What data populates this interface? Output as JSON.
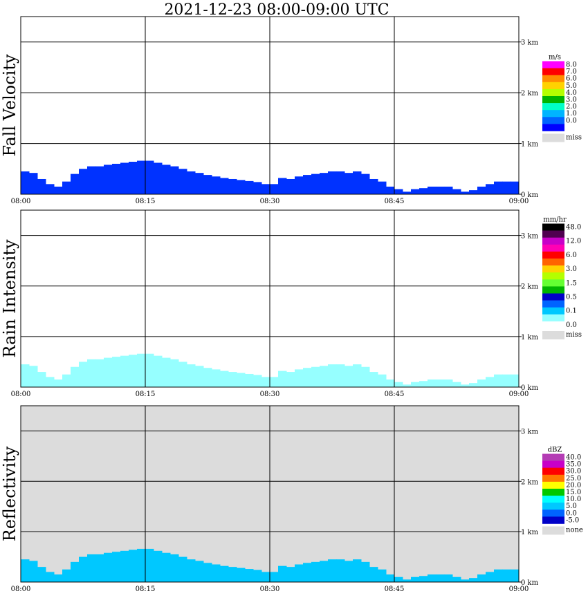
{
  "title": "2021-12-23   08:00-09:00 UTC",
  "chart_data": [
    {
      "type": "heatmap",
      "panel_label": "Fall Velocity",
      "x_ticks": [
        "08:00",
        "08:15",
        "08:30",
        "08:45",
        "09:00"
      ],
      "x_range_minutes": [
        0,
        60
      ],
      "y_ticks": [
        "0 km",
        "1 km",
        "2 km",
        "3 km"
      ],
      "y_range_km": [
        0,
        3.5
      ],
      "grid": true,
      "background": "#ffffff",
      "colorbar": {
        "unit": "m/s",
        "entries": [
          {
            "label": "8.0",
            "color": "#ff00ff"
          },
          {
            "label": "7.0",
            "color": "#ff0000"
          },
          {
            "label": "6.0",
            "color": "#ff8c00"
          },
          {
            "label": "5.0",
            "color": "#ffd200"
          },
          {
            "label": "4.0",
            "color": "#b4ff00"
          },
          {
            "label": "3.0",
            "color": "#00b400"
          },
          {
            "label": "2.0",
            "color": "#00ffc8"
          },
          {
            "label": "1.0",
            "color": "#00b4ff"
          },
          {
            "label": "0.0",
            "color": "#0064ff"
          },
          {
            "label": "",
            "color": "#0000ff"
          }
        ],
        "miss_label": "miss",
        "miss_color": "#dcdcdc"
      },
      "echo_top_km": [
        0.45,
        0.42,
        0.3,
        0.2,
        0.15,
        0.25,
        0.4,
        0.5,
        0.55,
        0.55,
        0.58,
        0.6,
        0.62,
        0.64,
        0.66,
        0.66,
        0.62,
        0.58,
        0.55,
        0.5,
        0.45,
        0.42,
        0.38,
        0.35,
        0.32,
        0.3,
        0.28,
        0.26,
        0.24,
        0.2,
        0.2,
        0.32,
        0.3,
        0.35,
        0.38,
        0.4,
        0.42,
        0.45,
        0.45,
        0.42,
        0.45,
        0.4,
        0.3,
        0.25,
        0.15,
        0.1,
        0.05,
        0.1,
        0.12,
        0.15,
        0.15,
        0.15,
        0.1,
        0.05,
        0.08,
        0.15,
        0.2,
        0.25,
        0.25,
        0.25
      ],
      "fill_color": "#0032ff"
    },
    {
      "type": "heatmap",
      "panel_label": "Rain Intensity",
      "x_ticks": [
        "08:00",
        "08:15",
        "08:30",
        "08:45",
        "09:00"
      ],
      "x_range_minutes": [
        0,
        60
      ],
      "y_ticks": [
        "0 km",
        "1 km",
        "2 km",
        "3 km"
      ],
      "y_range_km": [
        0,
        3.5
      ],
      "grid": true,
      "background": "#ffffff",
      "colorbar": {
        "unit": "mm/hr",
        "entries": [
          {
            "label": "48.0",
            "color": "#000000"
          },
          {
            "label": "",
            "color": "#500050"
          },
          {
            "label": "12.0",
            "color": "#c800c8"
          },
          {
            "label": "",
            "color": "#ff00b4"
          },
          {
            "label": "6.0",
            "color": "#ff0000"
          },
          {
            "label": "",
            "color": "#ff6400"
          },
          {
            "label": "3.0",
            "color": "#ffd200"
          },
          {
            "label": "",
            "color": "#b4ff00"
          },
          {
            "label": "1.5",
            "color": "#64ff32"
          },
          {
            "label": "",
            "color": "#00b400"
          },
          {
            "label": "0.5",
            "color": "#0000c8"
          },
          {
            "label": "",
            "color": "#0064ff"
          },
          {
            "label": "0.1",
            "color": "#00c8ff"
          },
          {
            "label": "",
            "color": "#96ffff"
          },
          {
            "label": "0.0",
            "color": "#ffffff"
          }
        ],
        "miss_label": "miss",
        "miss_color": "#dcdcdc"
      },
      "echo_top_km": [
        0.45,
        0.42,
        0.3,
        0.2,
        0.15,
        0.25,
        0.4,
        0.5,
        0.55,
        0.55,
        0.58,
        0.6,
        0.62,
        0.64,
        0.66,
        0.66,
        0.62,
        0.58,
        0.55,
        0.5,
        0.45,
        0.42,
        0.38,
        0.35,
        0.32,
        0.3,
        0.28,
        0.26,
        0.24,
        0.2,
        0.2,
        0.32,
        0.3,
        0.35,
        0.38,
        0.4,
        0.42,
        0.45,
        0.45,
        0.42,
        0.45,
        0.4,
        0.3,
        0.25,
        0.15,
        0.1,
        0.05,
        0.1,
        0.12,
        0.15,
        0.15,
        0.15,
        0.1,
        0.05,
        0.08,
        0.15,
        0.2,
        0.25,
        0.25,
        0.25
      ],
      "fill_color": "#96ffff"
    },
    {
      "type": "heatmap",
      "panel_label": "Reflectivity",
      "x_ticks": [
        "08:00",
        "08:15",
        "08:30",
        "08:45",
        "09:00"
      ],
      "x_range_minutes": [
        0,
        60
      ],
      "y_ticks": [
        "0 km",
        "1 km",
        "2 km",
        "3 km"
      ],
      "y_range_km": [
        0,
        3.5
      ],
      "grid": true,
      "background": "#dcdcdc",
      "colorbar": {
        "unit": "dBZ",
        "entries": [
          {
            "label": "40.0",
            "color": "#b43cb4"
          },
          {
            "label": "35.0",
            "color": "#c800c8"
          },
          {
            "label": "30.0",
            "color": "#ff0000"
          },
          {
            "label": "25.0",
            "color": "#ff7800"
          },
          {
            "label": "20.0",
            "color": "#ffff00"
          },
          {
            "label": "15.0",
            "color": "#00c800"
          },
          {
            "label": "10.0",
            "color": "#00ffff"
          },
          {
            "label": "5.0",
            "color": "#00c8ff"
          },
          {
            "label": "0.0",
            "color": "#0064ff"
          },
          {
            "label": "-5.0",
            "color": "#0000c8"
          }
        ],
        "miss_label": "none",
        "miss_color": "#dcdcdc"
      },
      "echo_top_km": [
        0.45,
        0.42,
        0.3,
        0.2,
        0.15,
        0.25,
        0.4,
        0.5,
        0.55,
        0.55,
        0.58,
        0.6,
        0.62,
        0.64,
        0.66,
        0.66,
        0.62,
        0.58,
        0.55,
        0.5,
        0.45,
        0.42,
        0.38,
        0.35,
        0.32,
        0.3,
        0.28,
        0.26,
        0.24,
        0.2,
        0.2,
        0.32,
        0.3,
        0.35,
        0.38,
        0.4,
        0.42,
        0.45,
        0.45,
        0.42,
        0.45,
        0.4,
        0.3,
        0.25,
        0.15,
        0.1,
        0.05,
        0.1,
        0.12,
        0.15,
        0.15,
        0.15,
        0.1,
        0.05,
        0.08,
        0.15,
        0.2,
        0.25,
        0.25,
        0.25
      ],
      "fill_color": "#00c8ff"
    }
  ]
}
